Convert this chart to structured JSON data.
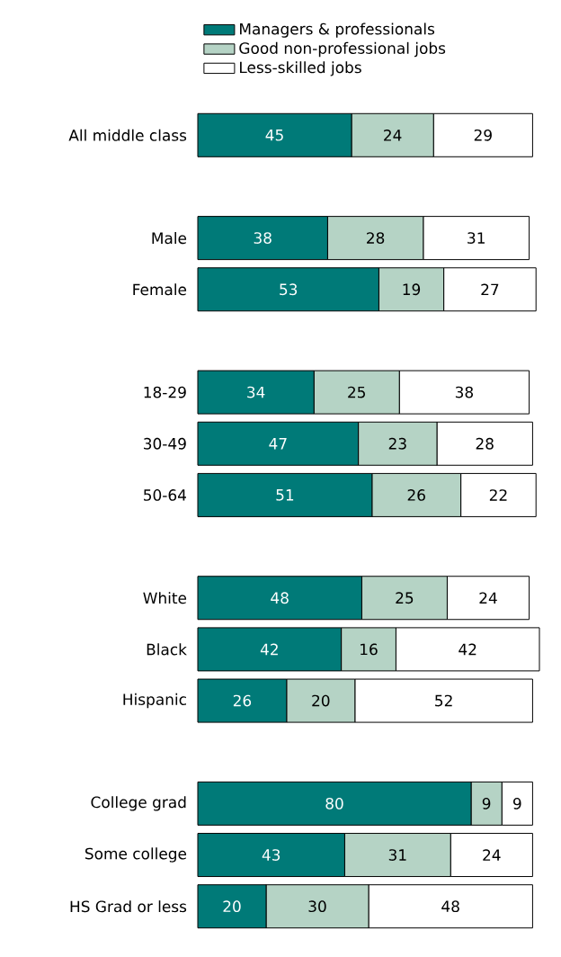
{
  "chart_data": {
    "type": "bar",
    "orientation": "horizontal",
    "stacked": true,
    "data_labels": true,
    "legend": "top",
    "categories": [
      "All middle class",
      null,
      "Male",
      "Female",
      null,
      "18-29",
      "30-49",
      "50-64",
      null,
      "White",
      "Black",
      "Hispanic",
      null,
      "College grad",
      "Some college",
      "HS Grad or less"
    ],
    "series": [
      {
        "name": "Managers & professionals",
        "color": "#007a78",
        "values": [
          45,
          null,
          38,
          53,
          null,
          34,
          47,
          51,
          null,
          48,
          42,
          26,
          null,
          80,
          43,
          20
        ]
      },
      {
        "name": "Good non-professional jobs",
        "color": "#b5d3c5",
        "values": [
          24,
          null,
          28,
          19,
          null,
          25,
          23,
          26,
          null,
          25,
          16,
          20,
          null,
          9,
          31,
          30
        ]
      },
      {
        "name": "Less-skilled jobs",
        "color": "#ffffff",
        "values": [
          29,
          null,
          31,
          27,
          null,
          38,
          28,
          22,
          null,
          24,
          42,
          52,
          null,
          9,
          24,
          48
        ]
      }
    ]
  }
}
